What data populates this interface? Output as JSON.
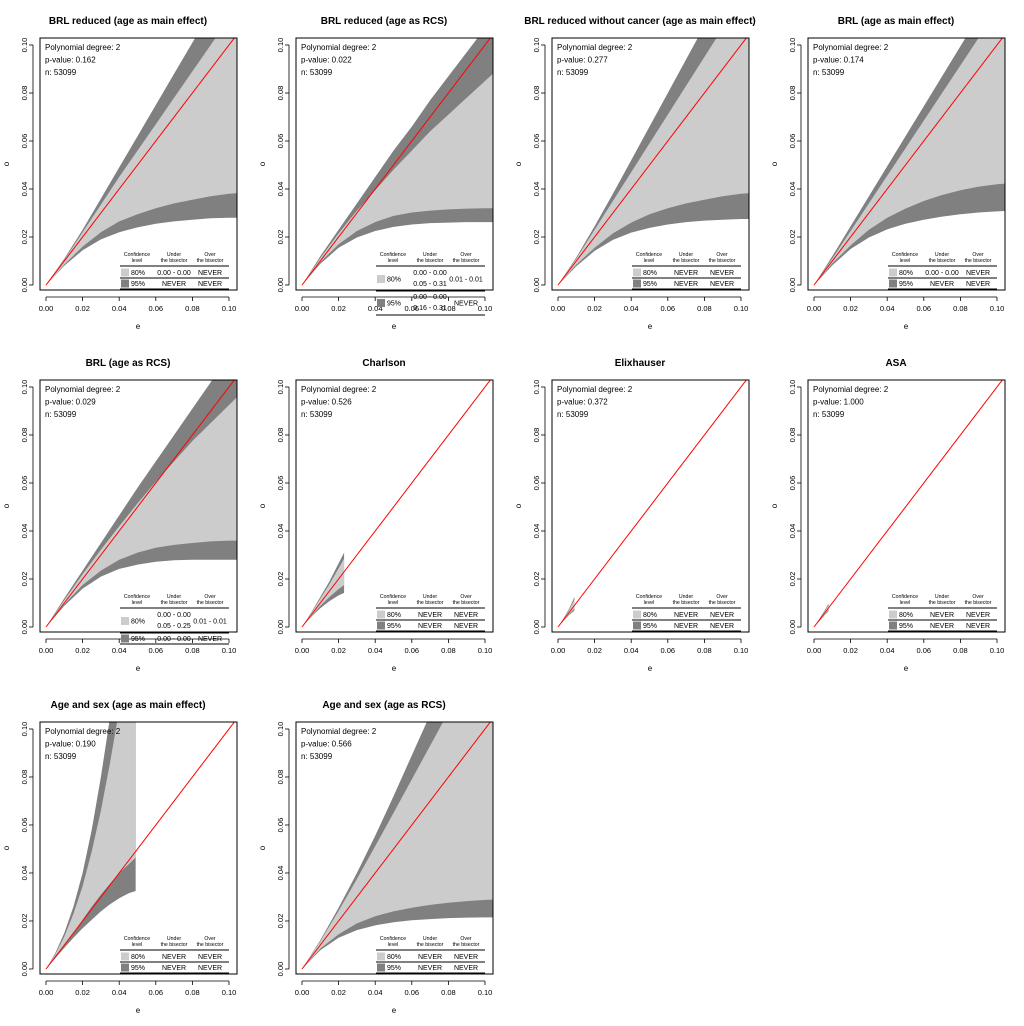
{
  "colors": {
    "light": "#cccccc",
    "dark": "#808080",
    "bisector": "#ff0000",
    "axis": "#000000"
  },
  "legend_headers": {
    "confidence": [
      "Confidence",
      "level"
    ],
    "under": [
      "Under",
      "the bisector"
    ],
    "over": [
      "Over",
      "the bisector"
    ]
  },
  "chart_data": [
    {
      "type": "area",
      "title": "BRL reduced (age as main effect)",
      "xlabel": "e",
      "ylabel": "o",
      "xlim": [
        0,
        0.1
      ],
      "ylim": [
        0,
        0.1
      ],
      "xticks": [
        "0.00",
        "0.02",
        "0.04",
        "0.06",
        "0.08",
        "0.10"
      ],
      "yticks": [
        "0.00",
        "0.02",
        "0.04",
        "0.06",
        "0.08",
        "0.10"
      ],
      "annotations": [
        "Polynomial degree: 2",
        "p-value: 0.162",
        "n: 53099"
      ],
      "bands": {
        "e": [
          0,
          0.01,
          0.02,
          0.03,
          0.04,
          0.05,
          0.06,
          0.07,
          0.08,
          0.09,
          0.1,
          0.11
        ],
        "upper95": [
          0,
          0.011,
          0.023,
          0.036,
          0.049,
          0.062,
          0.075,
          0.088,
          0.101,
          0.114,
          0.127,
          0.14
        ],
        "upper80": [
          0,
          0.0105,
          0.022,
          0.0335,
          0.045,
          0.056,
          0.067,
          0.078,
          0.089,
          0.1,
          0.111,
          0.122
        ],
        "lower80": [
          0,
          0.0085,
          0.016,
          0.022,
          0.0265,
          0.0295,
          0.032,
          0.034,
          0.0355,
          0.037,
          0.038,
          0.0385
        ],
        "lower95": [
          0,
          0.008,
          0.0145,
          0.019,
          0.022,
          0.024,
          0.0255,
          0.0265,
          0.0272,
          0.0278,
          0.028,
          0.028
        ]
      },
      "legend": {
        "rows": [
          {
            "level": "80%",
            "under": [
              "0.00 - 0.00"
            ],
            "over": [
              "NEVER"
            ]
          },
          {
            "level": "95%",
            "under": [
              "NEVER"
            ],
            "over": [
              "NEVER"
            ]
          }
        ]
      }
    },
    {
      "type": "area",
      "title": "BRL reduced (age as RCS)",
      "xlabel": "e",
      "ylabel": "o",
      "xlim": [
        0,
        0.1
      ],
      "ylim": [
        0,
        0.1
      ],
      "xticks": [
        "0.00",
        "0.02",
        "0.04",
        "0.06",
        "0.08",
        "0.10"
      ],
      "yticks": [
        "0.00",
        "0.02",
        "0.04",
        "0.06",
        "0.08",
        "0.10"
      ],
      "annotations": [
        "Polynomial degree: 2",
        "p-value: 0.022",
        "n: 53099"
      ],
      "bands": {
        "e": [
          0,
          0.01,
          0.02,
          0.03,
          0.04,
          0.05,
          0.06,
          0.07,
          0.08,
          0.09,
          0.1,
          0.11
        ],
        "upper95": [
          0,
          0.012,
          0.023,
          0.034,
          0.045,
          0.056,
          0.066,
          0.077,
          0.087,
          0.097,
          0.107,
          0.117
        ],
        "upper80": [
          0,
          0.0112,
          0.0215,
          0.031,
          0.0395,
          0.048,
          0.056,
          0.064,
          0.071,
          0.078,
          0.085,
          0.092
        ],
        "lower80": [
          0,
          0.0095,
          0.017,
          0.0225,
          0.0262,
          0.0288,
          0.0302,
          0.031,
          0.0315,
          0.0318,
          0.032,
          0.032
        ],
        "lower95": [
          0,
          0.0088,
          0.0155,
          0.0198,
          0.0225,
          0.0242,
          0.0252,
          0.0258,
          0.026,
          0.0262,
          0.0262,
          0.0262
        ]
      },
      "legend": {
        "rows": [
          {
            "level": "80%",
            "under": [
              "0.00 - 0.00",
              "0.05 - 0.31"
            ],
            "over": [
              "0.01 - 0.01"
            ]
          },
          {
            "level": "95%",
            "under": [
              "0.00 - 0.00",
              "0.16 - 0.31"
            ],
            "over": [
              "NEVER"
            ]
          }
        ]
      }
    },
    {
      "type": "area",
      "title": "BRL reduced without cancer (age as main effect)",
      "xlabel": "e",
      "ylabel": "o",
      "xlim": [
        0,
        0.1
      ],
      "ylim": [
        0,
        0.1
      ],
      "xticks": [
        "0.00",
        "0.02",
        "0.04",
        "0.06",
        "0.08",
        "0.10"
      ],
      "yticks": [
        "0.00",
        "0.02",
        "0.04",
        "0.06",
        "0.08",
        "0.10"
      ],
      "annotations": [
        "Polynomial degree: 2",
        "p-value: 0.277",
        "n: 53099"
      ],
      "bands": {
        "e": [
          0,
          0.01,
          0.02,
          0.03,
          0.04,
          0.05,
          0.06,
          0.07,
          0.08,
          0.09,
          0.1,
          0.11
        ],
        "upper95": [
          0,
          0.0115,
          0.0245,
          0.038,
          0.052,
          0.066,
          0.08,
          0.094,
          0.108,
          0.122,
          0.136,
          0.15
        ],
        "upper80": [
          0,
          0.011,
          0.023,
          0.035,
          0.047,
          0.059,
          0.071,
          0.083,
          0.095,
          0.107,
          0.119,
          0.131
        ],
        "lower80": [
          0,
          0.0085,
          0.0155,
          0.0215,
          0.026,
          0.0295,
          0.032,
          0.034,
          0.0355,
          0.037,
          0.038,
          0.0385
        ],
        "lower95": [
          0,
          0.0078,
          0.0142,
          0.0188,
          0.0218,
          0.0238,
          0.0252,
          0.0262,
          0.0268,
          0.0272,
          0.0275,
          0.0275
        ]
      },
      "legend": {
        "rows": [
          {
            "level": "80%",
            "under": [
              "NEVER"
            ],
            "over": [
              "NEVER"
            ]
          },
          {
            "level": "95%",
            "under": [
              "NEVER"
            ],
            "over": [
              "NEVER"
            ]
          }
        ]
      }
    },
    {
      "type": "area",
      "title": "BRL (age as main effect)",
      "xlabel": "e",
      "ylabel": "o",
      "xlim": [
        0,
        0.1
      ],
      "ylim": [
        0,
        0.1
      ],
      "xticks": [
        "0.00",
        "0.02",
        "0.04",
        "0.06",
        "0.08",
        "0.10"
      ],
      "yticks": [
        "0.00",
        "0.02",
        "0.04",
        "0.06",
        "0.08",
        "0.10"
      ],
      "annotations": [
        "Polynomial degree: 2",
        "p-value: 0.174",
        "n: 53099"
      ],
      "bands": {
        "e": [
          0,
          0.01,
          0.02,
          0.03,
          0.04,
          0.05,
          0.06,
          0.07,
          0.08,
          0.09,
          0.1,
          0.11
        ],
        "upper95": [
          0,
          0.012,
          0.0245,
          0.037,
          0.0495,
          0.062,
          0.0745,
          0.087,
          0.0995,
          0.112,
          0.1245,
          0.137
        ],
        "upper80": [
          0,
          0.011,
          0.0225,
          0.034,
          0.0455,
          0.057,
          0.0685,
          0.08,
          0.0915,
          0.103,
          0.1145,
          0.126
        ],
        "lower80": [
          0,
          0.009,
          0.0165,
          0.023,
          0.028,
          0.0318,
          0.035,
          0.0375,
          0.0395,
          0.041,
          0.042,
          0.0425
        ],
        "lower95": [
          0,
          0.0082,
          0.015,
          0.0198,
          0.0232,
          0.0255,
          0.0272,
          0.0285,
          0.0295,
          0.0302,
          0.0307,
          0.031
        ]
      },
      "legend": {
        "rows": [
          {
            "level": "80%",
            "under": [
              "0.00 - 0.00"
            ],
            "over": [
              "NEVER"
            ]
          },
          {
            "level": "95%",
            "under": [
              "NEVER"
            ],
            "over": [
              "NEVER"
            ]
          }
        ]
      }
    },
    {
      "type": "area",
      "title": "BRL (age as RCS)",
      "xlabel": "e",
      "ylabel": "o",
      "xlim": [
        0,
        0.1
      ],
      "ylim": [
        0,
        0.1
      ],
      "xticks": [
        "0.00",
        "0.02",
        "0.04",
        "0.06",
        "0.08",
        "0.10"
      ],
      "yticks": [
        "0.00",
        "0.02",
        "0.04",
        "0.06",
        "0.08",
        "0.10"
      ],
      "annotations": [
        "Polynomial degree: 2",
        "p-value: 0.029",
        "n: 53099"
      ],
      "bands": {
        "e": [
          0,
          0.01,
          0.02,
          0.03,
          0.04,
          0.05,
          0.06,
          0.07,
          0.08,
          0.09,
          0.1,
          0.11
        ],
        "upper95": [
          0,
          0.012,
          0.0235,
          0.035,
          0.0465,
          0.058,
          0.069,
          0.08,
          0.091,
          0.102,
          0.113,
          0.124
        ],
        "upper80": [
          0,
          0.0112,
          0.022,
          0.0322,
          0.042,
          0.0515,
          0.0605,
          0.069,
          0.0775,
          0.085,
          0.0925,
          0.1
        ],
        "lower80": [
          0,
          0.0095,
          0.0175,
          0.0235,
          0.028,
          0.031,
          0.033,
          0.0342,
          0.035,
          0.0357,
          0.036,
          0.036
        ],
        "lower95": [
          0,
          0.0088,
          0.016,
          0.021,
          0.0242,
          0.026,
          0.0272,
          0.0278,
          0.028,
          0.028,
          0.028,
          0.028
        ]
      },
      "legend": {
        "rows": [
          {
            "level": "80%",
            "under": [
              "0.00 - 0.00",
              "0.05 - 0.25"
            ],
            "over": [
              "0.01 - 0.01"
            ]
          },
          {
            "level": "95%",
            "under": [
              "0.00 - 0.00"
            ],
            "over": [
              "NEVER"
            ]
          }
        ]
      }
    },
    {
      "type": "area",
      "title": "Charlson",
      "xlabel": "e",
      "ylabel": "o",
      "xlim": [
        0,
        0.1
      ],
      "ylim": [
        0,
        0.1
      ],
      "xticks": [
        "0.00",
        "0.02",
        "0.04",
        "0.06",
        "0.08",
        "0.10"
      ],
      "yticks": [
        "0.00",
        "0.02",
        "0.04",
        "0.06",
        "0.08",
        "0.10"
      ],
      "annotations": [
        "Polynomial degree: 2",
        "p-value: 0.526",
        "n: 53099"
      ],
      "bands": {
        "e": [
          0,
          0.005,
          0.01,
          0.015,
          0.02,
          0.023
        ],
        "upper95": [
          0,
          0.006,
          0.0125,
          0.019,
          0.0265,
          0.031
        ],
        "upper80": [
          0,
          0.0057,
          0.0118,
          0.0178,
          0.0245,
          0.0285
        ],
        "lower80": [
          0,
          0.0045,
          0.0088,
          0.0125,
          0.0158,
          0.0175
        ],
        "lower95": [
          0,
          0.0042,
          0.0078,
          0.0108,
          0.0132,
          0.0142
        ]
      },
      "legend": {
        "rows": [
          {
            "level": "80%",
            "under": [
              "NEVER"
            ],
            "over": [
              "NEVER"
            ]
          },
          {
            "level": "95%",
            "under": [
              "NEVER"
            ],
            "over": [
              "NEVER"
            ]
          }
        ]
      }
    },
    {
      "type": "area",
      "title": "Elixhauser",
      "xlabel": "e",
      "ylabel": "o",
      "xlim": [
        0,
        0.1
      ],
      "ylim": [
        0,
        0.1
      ],
      "xticks": [
        "0.00",
        "0.02",
        "0.04",
        "0.06",
        "0.08",
        "0.10"
      ],
      "yticks": [
        "0.00",
        "0.02",
        "0.04",
        "0.06",
        "0.08",
        "0.10"
      ],
      "annotations": [
        "Polynomial degree: 2",
        "p-value: 0.372",
        "n: 53099"
      ],
      "bands": {
        "e": [
          0,
          0.003,
          0.006,
          0.009
        ],
        "upper95": [
          0,
          0.0036,
          0.0075,
          0.0125
        ],
        "upper80": [
          0,
          0.0034,
          0.007,
          0.0115
        ],
        "lower80": [
          0,
          0.0027,
          0.0054,
          0.0075
        ],
        "lower95": [
          0,
          0.0025,
          0.005,
          0.0068
        ]
      },
      "legend": {
        "rows": [
          {
            "level": "80%",
            "under": [
              "NEVER"
            ],
            "over": [
              "NEVER"
            ]
          },
          {
            "level": "95%",
            "under": [
              "NEVER"
            ],
            "over": [
              "NEVER"
            ]
          }
        ]
      }
    },
    {
      "type": "area",
      "title": "ASA",
      "xlabel": "e",
      "ylabel": "o",
      "xlim": [
        0,
        0.1
      ],
      "ylim": [
        0,
        0.1
      ],
      "xticks": [
        "0.00",
        "0.02",
        "0.04",
        "0.06",
        "0.08",
        "0.10"
      ],
      "yticks": [
        "0.00",
        "0.02",
        "0.04",
        "0.06",
        "0.08",
        "0.10"
      ],
      "annotations": [
        "Polynomial degree: 2",
        "p-value: 1.000",
        "n: 53099"
      ],
      "bands": {
        "e": [
          0,
          0.003,
          0.006,
          0.008
        ],
        "upper95": [
          0,
          0.0035,
          0.0072,
          0.0098
        ],
        "upper80": [
          0,
          0.0033,
          0.0068,
          0.0092
        ],
        "lower80": [
          0,
          0.0027,
          0.0054,
          0.0071
        ],
        "lower95": [
          0,
          0.0025,
          0.0051,
          0.0066
        ]
      },
      "legend": {
        "rows": [
          {
            "level": "80%",
            "under": [
              "NEVER"
            ],
            "over": [
              "NEVER"
            ]
          },
          {
            "level": "95%",
            "under": [
              "NEVER"
            ],
            "over": [
              "NEVER"
            ]
          }
        ]
      }
    },
    {
      "type": "area",
      "title": "Age and sex (age as main effect)",
      "xlabel": "e",
      "ylabel": "o",
      "xlim": [
        0,
        0.1
      ],
      "ylim": [
        0,
        0.1
      ],
      "xticks": [
        "0.00",
        "0.02",
        "0.04",
        "0.06",
        "0.08",
        "0.10"
      ],
      "yticks": [
        "0.00",
        "0.02",
        "0.04",
        "0.06",
        "0.08",
        "0.10"
      ],
      "annotations": [
        "Polynomial degree: 2",
        "p-value: 0.190",
        "n: 53099"
      ],
      "bands": {
        "e": [
          0,
          0.005,
          0.01,
          0.015,
          0.02,
          0.025,
          0.03,
          0.035,
          0.04,
          0.045,
          0.049
        ],
        "upper95": [
          0,
          0.0065,
          0.015,
          0.026,
          0.04,
          0.058,
          0.08,
          0.105,
          0.13,
          0.16,
          0.185
        ],
        "upper80": [
          0,
          0.006,
          0.0135,
          0.023,
          0.0345,
          0.049,
          0.066,
          0.086,
          0.108,
          0.132,
          0.155
        ],
        "lower80": [
          0,
          0.0048,
          0.0098,
          0.015,
          0.0205,
          0.026,
          0.031,
          0.0355,
          0.04,
          0.0435,
          0.0465
        ],
        "lower95": [
          0,
          0.0044,
          0.0088,
          0.013,
          0.017,
          0.0205,
          0.024,
          0.027,
          0.0295,
          0.0315,
          0.0325
        ]
      },
      "legend": {
        "rows": [
          {
            "level": "80%",
            "under": [
              "NEVER"
            ],
            "over": [
              "NEVER"
            ]
          },
          {
            "level": "95%",
            "under": [
              "NEVER"
            ],
            "over": [
              "NEVER"
            ]
          }
        ]
      }
    },
    {
      "type": "area",
      "title": "Age and sex (age as RCS)",
      "xlabel": "e",
      "ylabel": "o",
      "xlim": [
        0,
        0.1
      ],
      "ylim": [
        0,
        0.1
      ],
      "xticks": [
        "0.00",
        "0.02",
        "0.04",
        "0.06",
        "0.08",
        "0.10"
      ],
      "yticks": [
        "0.00",
        "0.02",
        "0.04",
        "0.06",
        "0.08",
        "0.10"
      ],
      "annotations": [
        "Polynomial degree: 2",
        "p-value: 0.566",
        "n: 53099"
      ],
      "bands": {
        "e": [
          0,
          0.01,
          0.02,
          0.03,
          0.04,
          0.05,
          0.06,
          0.07,
          0.08,
          0.09,
          0.1,
          0.11
        ],
        "upper95": [
          0,
          0.012,
          0.0255,
          0.04,
          0.0555,
          0.072,
          0.089,
          0.106,
          0.123,
          0.14,
          0.157,
          0.174
        ],
        "upper80": [
          0,
          0.0115,
          0.0242,
          0.0375,
          0.0512,
          0.065,
          0.079,
          0.093,
          0.107,
          0.121,
          0.135,
          0.149
        ],
        "lower80": [
          0,
          0.0085,
          0.0145,
          0.019,
          0.022,
          0.024,
          0.0255,
          0.0267,
          0.0276,
          0.0283,
          0.0288,
          0.029
        ],
        "lower95": [
          0,
          0.0078,
          0.013,
          0.0162,
          0.0182,
          0.0195,
          0.0203,
          0.0208,
          0.0212,
          0.0214,
          0.0215,
          0.0215
        ]
      },
      "legend": {
        "rows": [
          {
            "level": "80%",
            "under": [
              "NEVER"
            ],
            "over": [
              "NEVER"
            ]
          },
          {
            "level": "95%",
            "under": [
              "NEVER"
            ],
            "over": [
              "NEVER"
            ]
          }
        ]
      }
    }
  ]
}
